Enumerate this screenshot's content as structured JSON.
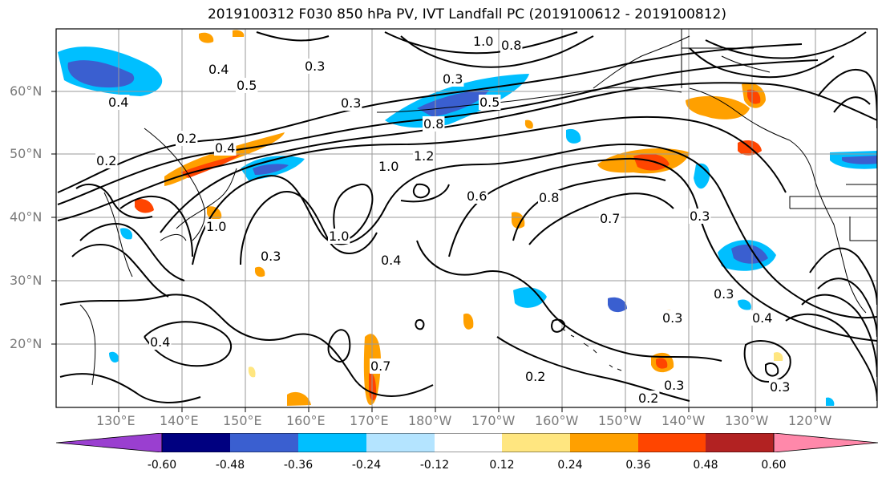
{
  "title": "2019100312 F030 850 hPa PV, IVT Landfall PC (2019100612 - 2019100812)",
  "lat_labels": [
    "60°N",
    "50°N",
    "40°N",
    "30°N",
    "20°N"
  ],
  "lon_labels": [
    "130°E",
    "140°E",
    "150°E",
    "160°E",
    "170°E",
    "180°W",
    "170°W",
    "160°W",
    "150°W",
    "140°W",
    "130°W",
    "120°W"
  ],
  "colorbar": {
    "colors": [
      "#9a3fd0",
      "#000080",
      "#3a5fd0",
      "#00bfff",
      "#b4e4ff",
      "#ffffff",
      "#ffe680",
      "#ffa000",
      "#ff4500",
      "#b22222",
      "#ff88aa"
    ],
    "tick_labels": [
      "-0.60",
      "-0.48",
      "-0.36",
      "-0.24",
      "-0.12",
      "0.12",
      "0.24",
      "0.36",
      "0.48",
      "0.60"
    ]
  },
  "contour_labels": [
    "0.4",
    "0.5",
    "0.4",
    "0.2",
    "0.2",
    "0.4",
    "0.3",
    "0.3",
    "1.0",
    "0.8",
    "0.3",
    "0.5",
    "0.8",
    "1.2",
    "1.0",
    "0.6",
    "0.8",
    "0.7",
    "0.3",
    "0.4",
    "1.0",
    "0.4",
    "0.3",
    "0.3",
    "0.3",
    "0.4",
    "0.2",
    "0.2",
    "0.3",
    "0.3",
    "0.7",
    "1.0"
  ]
}
